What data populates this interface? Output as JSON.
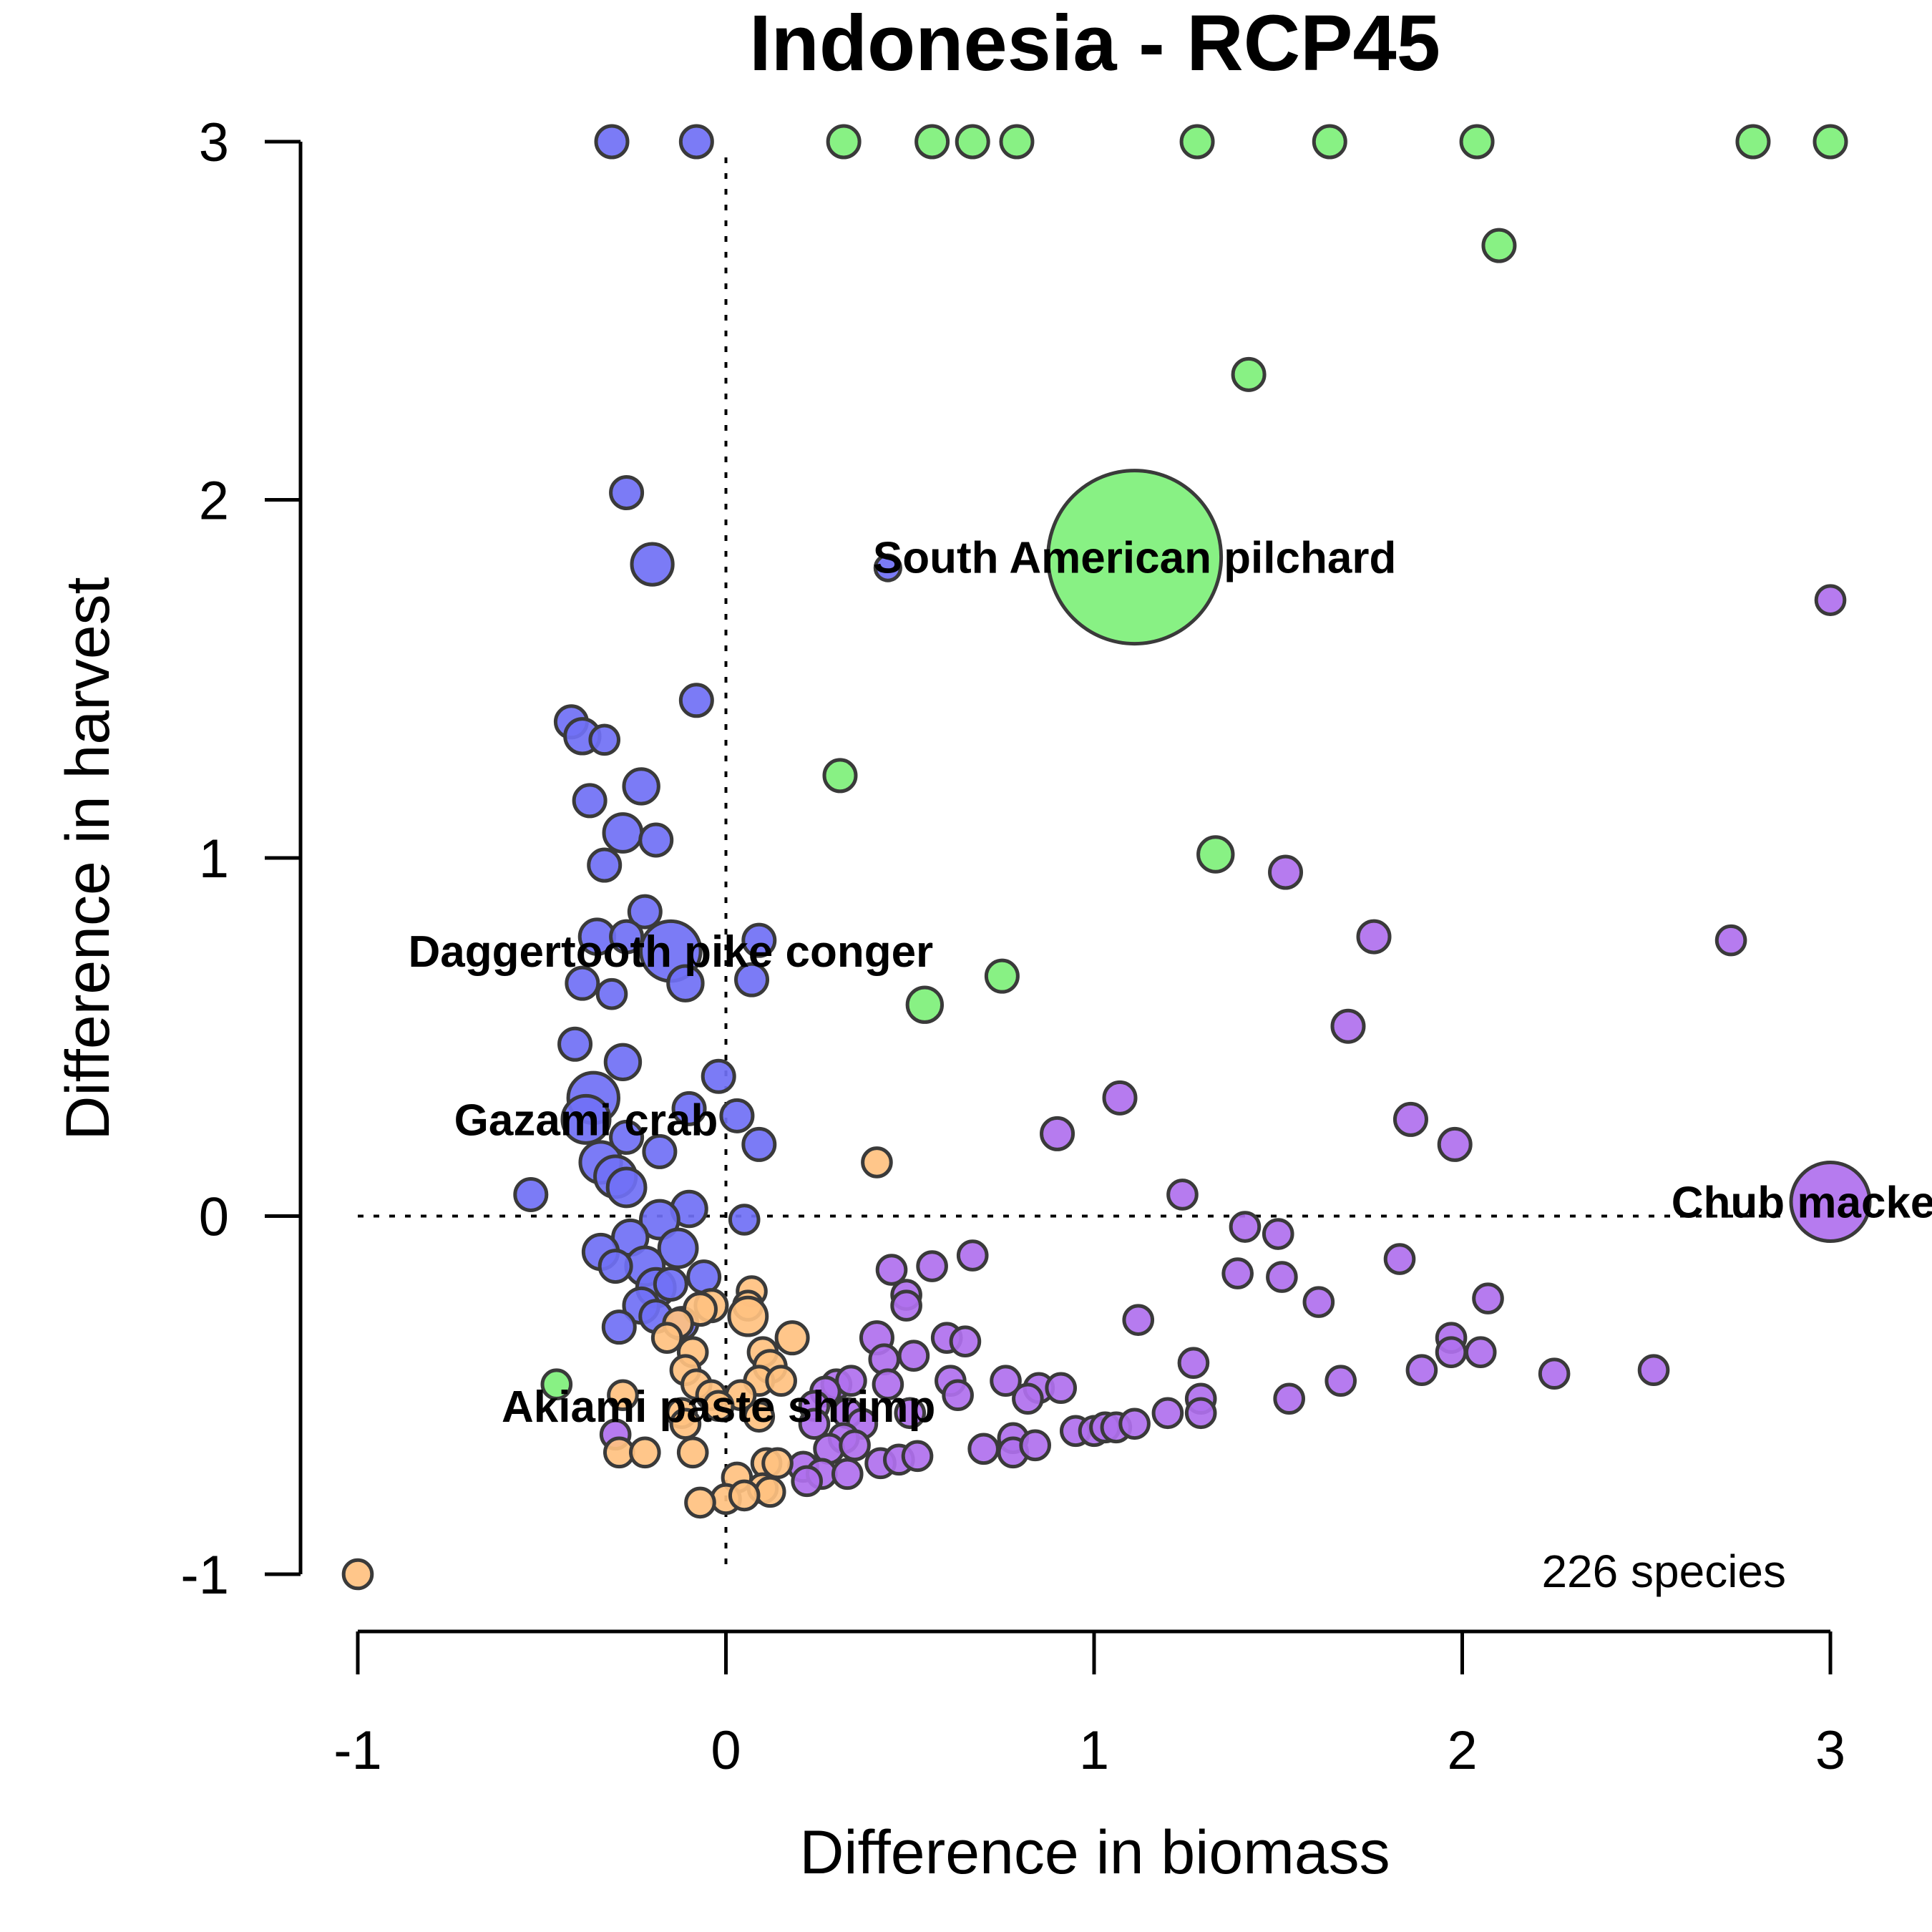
{
  "chart_data": {
    "type": "scatter",
    "title": "Indonesia - RCP45",
    "xlabel": "Difference in biomass",
    "ylabel": "Difference in harvest",
    "xlim": [
      -1,
      3
    ],
    "ylim": [
      -1,
      3
    ],
    "x_ticks": [
      "-1",
      "0",
      "1",
      "2",
      "3"
    ],
    "y_ticks": [
      "-1",
      "0",
      "1",
      "2",
      "3"
    ],
    "reference_lines": {
      "x": 0,
      "y": 0,
      "style": "dotted"
    },
    "grid": false,
    "count_label": "226 species",
    "colors": {
      "green": "#7ef07a",
      "blue": "#7070f5",
      "purple": "#b070ee",
      "orange": "#ffc180",
      "outline": "#3a3a3a"
    },
    "series": [
      {
        "color_key": "green",
        "points": [
          {
            "x": 0.32,
            "y": 3.0,
            "s": 1
          },
          {
            "x": 0.56,
            "y": 3.0,
            "s": 1
          },
          {
            "x": 0.67,
            "y": 3.0,
            "s": 1
          },
          {
            "x": 0.79,
            "y": 3.0,
            "s": 1
          },
          {
            "x": 1.28,
            "y": 3.0,
            "s": 1
          },
          {
            "x": 1.64,
            "y": 3.0,
            "s": 1
          },
          {
            "x": 2.04,
            "y": 3.0,
            "s": 1
          },
          {
            "x": 2.79,
            "y": 3.0,
            "s": 1
          },
          {
            "x": 3.0,
            "y": 3.0,
            "s": 1
          },
          {
            "x": 2.1,
            "y": 2.71,
            "s": 1
          },
          {
            "x": 1.42,
            "y": 2.35,
            "s": 1
          },
          {
            "x": 1.11,
            "y": 1.84,
            "s": 5.5,
            "label": "South American pilchard"
          },
          {
            "x": 0.31,
            "y": 1.23,
            "s": 1
          },
          {
            "x": 1.33,
            "y": 1.01,
            "s": 1.1
          },
          {
            "x": 0.75,
            "y": 0.67,
            "s": 1
          },
          {
            "x": 0.54,
            "y": 0.59,
            "s": 1.1
          },
          {
            "x": -0.46,
            "y": -0.47,
            "s": 0.9
          }
        ]
      },
      {
        "color_key": "blue",
        "points": [
          {
            "x": -0.31,
            "y": 3.0,
            "s": 1
          },
          {
            "x": -0.08,
            "y": 3.0,
            "s": 1
          },
          {
            "x": -0.27,
            "y": 2.02,
            "s": 1
          },
          {
            "x": -0.2,
            "y": 1.82,
            "s": 1.3
          },
          {
            "x": 0.44,
            "y": 1.81,
            "s": 0.8
          },
          {
            "x": -0.08,
            "y": 1.44,
            "s": 1
          },
          {
            "x": -0.42,
            "y": 1.38,
            "s": 1
          },
          {
            "x": -0.39,
            "y": 1.34,
            "s": 1.1
          },
          {
            "x": -0.33,
            "y": 1.33,
            "s": 0.9
          },
          {
            "x": -0.23,
            "y": 1.2,
            "s": 1.1
          },
          {
            "x": -0.37,
            "y": 1.16,
            "s": 1
          },
          {
            "x": -0.28,
            "y": 1.07,
            "s": 1.2
          },
          {
            "x": -0.19,
            "y": 1.05,
            "s": 1
          },
          {
            "x": -0.33,
            "y": 0.98,
            "s": 1
          },
          {
            "x": -0.22,
            "y": 0.85,
            "s": 1
          },
          {
            "x": -0.35,
            "y": 0.78,
            "s": 1.1
          },
          {
            "x": -0.27,
            "y": 0.78,
            "s": 1
          },
          {
            "x": -0.15,
            "y": 0.74,
            "s": 1.9,
            "label": "Daggertooth pike conger"
          },
          {
            "x": 0.09,
            "y": 0.77,
            "s": 1
          },
          {
            "x": -0.11,
            "y": 0.65,
            "s": 1.1
          },
          {
            "x": 0.07,
            "y": 0.66,
            "s": 1
          },
          {
            "x": -0.39,
            "y": 0.65,
            "s": 1
          },
          {
            "x": -0.31,
            "y": 0.62,
            "s": 0.9
          },
          {
            "x": -0.41,
            "y": 0.48,
            "s": 1
          },
          {
            "x": -0.28,
            "y": 0.43,
            "s": 1.1
          },
          {
            "x": -0.02,
            "y": 0.39,
            "s": 1
          },
          {
            "x": -0.36,
            "y": 0.33,
            "s": 1.6
          },
          {
            "x": -0.38,
            "y": 0.27,
            "s": 1.5,
            "label": "Gazami crab"
          },
          {
            "x": 0.03,
            "y": 0.28,
            "s": 1
          },
          {
            "x": -0.1,
            "y": 0.3,
            "s": 1
          },
          {
            "x": -0.27,
            "y": 0.22,
            "s": 1
          },
          {
            "x": 0.09,
            "y": 0.2,
            "s": 1
          },
          {
            "x": -0.18,
            "y": 0.18,
            "s": 1
          },
          {
            "x": -0.34,
            "y": 0.15,
            "s": 1.3
          },
          {
            "x": -0.3,
            "y": 0.11,
            "s": 1.3
          },
          {
            "x": -0.27,
            "y": 0.08,
            "s": 1.2
          },
          {
            "x": -0.53,
            "y": 0.06,
            "s": 1
          },
          {
            "x": -0.1,
            "y": 0.02,
            "s": 1.1
          },
          {
            "x": -0.18,
            "y": -0.01,
            "s": 1.2
          },
          {
            "x": 0.05,
            "y": -0.01,
            "s": 0.9
          },
          {
            "x": -0.26,
            "y": -0.06,
            "s": 1.1
          },
          {
            "x": -0.13,
            "y": -0.09,
            "s": 1.2
          },
          {
            "x": -0.34,
            "y": -0.1,
            "s": 1.1
          },
          {
            "x": -0.22,
            "y": -0.14,
            "s": 1.2
          },
          {
            "x": -0.3,
            "y": -0.14,
            "s": 1
          },
          {
            "x": -0.06,
            "y": -0.17,
            "s": 1
          },
          {
            "x": -0.19,
            "y": -0.2,
            "s": 1.2
          },
          {
            "x": -0.15,
            "y": -0.19,
            "s": 1
          },
          {
            "x": -0.23,
            "y": -0.25,
            "s": 1.1
          },
          {
            "x": -0.19,
            "y": -0.28,
            "s": 1
          },
          {
            "x": -0.29,
            "y": -0.31,
            "s": 1
          },
          {
            "x": -0.12,
            "y": -0.3,
            "s": 1
          }
        ]
      },
      {
        "color_key": "purple",
        "points": [
          {
            "x": 3.0,
            "y": 1.72,
            "s": 0.9
          },
          {
            "x": 3.0,
            "y": 0.04,
            "s": 2.5,
            "label": "Chub mackerel"
          },
          {
            "x": 1.52,
            "y": 0.96,
            "s": 1
          },
          {
            "x": 1.76,
            "y": 0.78,
            "s": 1
          },
          {
            "x": 2.73,
            "y": 0.77,
            "s": 0.9
          },
          {
            "x": 1.69,
            "y": 0.53,
            "s": 1
          },
          {
            "x": 1.07,
            "y": 0.33,
            "s": 1
          },
          {
            "x": 0.9,
            "y": 0.23,
            "s": 1
          },
          {
            "x": 1.86,
            "y": 0.27,
            "s": 1
          },
          {
            "x": 1.98,
            "y": 0.2,
            "s": 1
          },
          {
            "x": 1.24,
            "y": 0.06,
            "s": 0.9
          },
          {
            "x": 1.41,
            "y": -0.03,
            "s": 0.9
          },
          {
            "x": 1.5,
            "y": -0.05,
            "s": 0.9
          },
          {
            "x": 0.67,
            "y": -0.11,
            "s": 0.9
          },
          {
            "x": 0.45,
            "y": -0.15,
            "s": 0.9
          },
          {
            "x": 0.56,
            "y": -0.14,
            "s": 0.9
          },
          {
            "x": 1.39,
            "y": -0.16,
            "s": 0.9
          },
          {
            "x": 1.51,
            "y": -0.17,
            "s": 0.9
          },
          {
            "x": 1.83,
            "y": -0.12,
            "s": 0.9
          },
          {
            "x": 0.49,
            "y": -0.22,
            "s": 0.9
          },
          {
            "x": 0.49,
            "y": -0.25,
            "s": 0.9
          },
          {
            "x": 1.61,
            "y": -0.24,
            "s": 0.9
          },
          {
            "x": 2.07,
            "y": -0.23,
            "s": 0.9
          },
          {
            "x": 1.12,
            "y": -0.29,
            "s": 0.9
          },
          {
            "x": 0.41,
            "y": -0.34,
            "s": 1
          },
          {
            "x": 0.6,
            "y": -0.34,
            "s": 0.9
          },
          {
            "x": 0.65,
            "y": -0.35,
            "s": 0.9
          },
          {
            "x": 1.97,
            "y": -0.34,
            "s": 0.9
          },
          {
            "x": 1.97,
            "y": -0.38,
            "s": 0.9
          },
          {
            "x": 2.05,
            "y": -0.38,
            "s": 0.9
          },
          {
            "x": 0.43,
            "y": -0.4,
            "s": 0.9
          },
          {
            "x": 0.51,
            "y": -0.39,
            "s": 0.9
          },
          {
            "x": 1.27,
            "y": -0.41,
            "s": 0.9
          },
          {
            "x": 1.89,
            "y": -0.43,
            "s": 0.9
          },
          {
            "x": 2.25,
            "y": -0.44,
            "s": 0.9
          },
          {
            "x": 2.52,
            "y": -0.43,
            "s": 0.9
          },
          {
            "x": 0.61,
            "y": -0.46,
            "s": 0.9
          },
          {
            "x": 0.76,
            "y": -0.46,
            "s": 0.9
          },
          {
            "x": 0.3,
            "y": -0.47,
            "s": 0.9
          },
          {
            "x": 0.34,
            "y": -0.46,
            "s": 0.9
          },
          {
            "x": 0.44,
            "y": -0.47,
            "s": 0.9
          },
          {
            "x": 1.67,
            "y": -0.46,
            "s": 0.9
          },
          {
            "x": 0.27,
            "y": -0.49,
            "s": 0.9
          },
          {
            "x": 0.85,
            "y": -0.48,
            "s": 0.9
          },
          {
            "x": 0.91,
            "y": -0.48,
            "s": 0.9
          },
          {
            "x": 0.63,
            "y": -0.5,
            "s": 0.9
          },
          {
            "x": 0.82,
            "y": -0.51,
            "s": 0.9
          },
          {
            "x": 1.29,
            "y": -0.51,
            "s": 0.9
          },
          {
            "x": 1.53,
            "y": -0.51,
            "s": 0.9
          },
          {
            "x": 0.24,
            "y": -0.53,
            "s": 0.9
          },
          {
            "x": 0.33,
            "y": -0.55,
            "s": 0.9
          },
          {
            "x": 0.5,
            "y": -0.55,
            "s": 0.9
          },
          {
            "x": 1.2,
            "y": -0.55,
            "s": 0.9
          },
          {
            "x": 1.29,
            "y": -0.55,
            "s": 0.9
          },
          {
            "x": 0.24,
            "y": -0.58,
            "s": 0.9
          },
          {
            "x": 0.37,
            "y": -0.58,
            "s": 0.9
          },
          {
            "x": 0.95,
            "y": -0.6,
            "s": 0.9
          },
          {
            "x": 1.0,
            "y": -0.6,
            "s": 0.9
          },
          {
            "x": 1.03,
            "y": -0.59,
            "s": 0.9
          },
          {
            "x": 1.06,
            "y": -0.59,
            "s": 0.9
          },
          {
            "x": 1.11,
            "y": -0.58,
            "s": 0.9
          },
          {
            "x": 0.32,
            "y": -0.62,
            "s": 0.9
          },
          {
            "x": 0.78,
            "y": -0.62,
            "s": 0.9
          },
          {
            "x": -0.3,
            "y": -0.61,
            "s": 0.9
          },
          {
            "x": 0.28,
            "y": -0.65,
            "s": 0.9
          },
          {
            "x": 0.35,
            "y": -0.64,
            "s": 0.9
          },
          {
            "x": 0.7,
            "y": -0.65,
            "s": 0.9
          },
          {
            "x": 0.78,
            "y": -0.66,
            "s": 0.9
          },
          {
            "x": 0.84,
            "y": -0.64,
            "s": 0.9
          },
          {
            "x": 0.42,
            "y": -0.69,
            "s": 0.9
          },
          {
            "x": 0.47,
            "y": -0.68,
            "s": 0.9
          },
          {
            "x": 0.52,
            "y": -0.67,
            "s": 0.9
          },
          {
            "x": 0.21,
            "y": -0.7,
            "s": 0.9
          },
          {
            "x": 0.26,
            "y": -0.72,
            "s": 0.9
          },
          {
            "x": 0.33,
            "y": -0.72,
            "s": 0.9
          },
          {
            "x": 0.22,
            "y": -0.74,
            "s": 0.9
          }
        ]
      },
      {
        "color_key": "orange",
        "points": [
          {
            "x": 0.41,
            "y": 0.15,
            "s": 0.9
          },
          {
            "x": -1.0,
            "y": -1.0,
            "s": 0.9
          },
          {
            "x": 0.07,
            "y": -0.21,
            "s": 0.9
          },
          {
            "x": 0.06,
            "y": -0.25,
            "s": 0.9
          },
          {
            "x": -0.04,
            "y": -0.25,
            "s": 1
          },
          {
            "x": 0.06,
            "y": -0.28,
            "s": 1.2
          },
          {
            "x": -0.07,
            "y": -0.26,
            "s": 1
          },
          {
            "x": -0.13,
            "y": -0.3,
            "s": 0.9
          },
          {
            "x": -0.16,
            "y": -0.34,
            "s": 0.9
          },
          {
            "x": 0.18,
            "y": -0.34,
            "s": 1
          },
          {
            "x": -0.09,
            "y": -0.38,
            "s": 0.9
          },
          {
            "x": 0.1,
            "y": -0.38,
            "s": 0.9
          },
          {
            "x": 0.12,
            "y": -0.42,
            "s": 1
          },
          {
            "x": -0.11,
            "y": -0.43,
            "s": 0.9
          },
          {
            "x": -0.08,
            "y": -0.47,
            "s": 0.9
          },
          {
            "x": 0.09,
            "y": -0.46,
            "s": 0.9
          },
          {
            "x": 0.15,
            "y": -0.46,
            "s": 0.9
          },
          {
            "x": -0.28,
            "y": -0.5,
            "s": 0.9
          },
          {
            "x": -0.04,
            "y": -0.5,
            "s": 0.9
          },
          {
            "x": 0.04,
            "y": -0.5,
            "s": 0.9
          },
          {
            "x": -0.02,
            "y": -0.53,
            "s": 0.9,
            "label": "Akiami paste shrimp"
          },
          {
            "x": -0.12,
            "y": -0.55,
            "s": 0.9
          },
          {
            "x": 0.09,
            "y": -0.56,
            "s": 0.9
          },
          {
            "x": -0.11,
            "y": -0.58,
            "s": 0.9
          },
          {
            "x": -0.29,
            "y": -0.66,
            "s": 0.9
          },
          {
            "x": -0.22,
            "y": -0.66,
            "s": 0.9
          },
          {
            "x": -0.09,
            "y": -0.66,
            "s": 0.9
          },
          {
            "x": 0.11,
            "y": -0.69,
            "s": 0.9
          },
          {
            "x": 0.14,
            "y": -0.69,
            "s": 0.9
          },
          {
            "x": 0.03,
            "y": -0.73,
            "s": 0.9
          },
          {
            "x": 0.1,
            "y": -0.76,
            "s": 0.9
          },
          {
            "x": 0.12,
            "y": -0.77,
            "s": 0.9
          },
          {
            "x": 0.0,
            "y": -0.79,
            "s": 0.9
          },
          {
            "x": 0.05,
            "y": -0.78,
            "s": 0.9
          },
          {
            "x": -0.07,
            "y": -0.8,
            "s": 0.9
          }
        ]
      }
    ]
  }
}
